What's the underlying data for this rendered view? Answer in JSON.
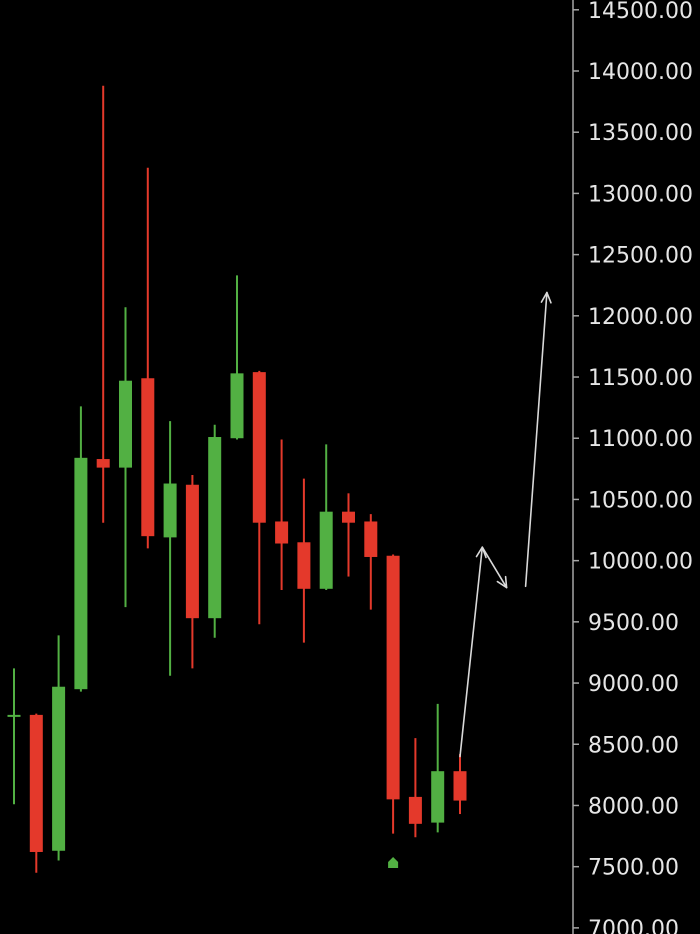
{
  "colors": {
    "background": "#000000",
    "up": "#52b043",
    "down": "#e4392b",
    "axis": "#a6a6a6",
    "tick_text": "#e6e6e6",
    "projection": "#d9d9d9"
  },
  "chart_data": {
    "type": "candlestick",
    "title": "",
    "xlabel": "",
    "ylabel": "",
    "ylim": [
      6950,
      14580
    ],
    "y_axis_position": "right",
    "grid": false,
    "y_ticks": [
      "14500.00",
      "14000.00",
      "13500.00",
      "13000.00",
      "12500.00",
      "12000.00",
      "11500.00",
      "11000.00",
      "10500.00",
      "10000.00",
      "9500.00",
      "9000.00",
      "8500.00",
      "8000.00",
      "7500.00",
      "7000.00"
    ],
    "candles": [
      {
        "open": 8740,
        "high": 9120,
        "low": 8010,
        "close": 8740
      },
      {
        "open": 8740,
        "high": 8750,
        "low": 7450,
        "close": 7620
      },
      {
        "open": 7630,
        "high": 9390,
        "low": 7550,
        "close": 8970
      },
      {
        "open": 8950,
        "high": 11260,
        "low": 8930,
        "close": 10840
      },
      {
        "open": 10830,
        "high": 13880,
        "low": 10310,
        "close": 10760
      },
      {
        "open": 10760,
        "high": 12070,
        "low": 9620,
        "close": 11470
      },
      {
        "open": 11490,
        "high": 13210,
        "low": 10100,
        "close": 10200
      },
      {
        "open": 10190,
        "high": 11140,
        "low": 9060,
        "close": 10630
      },
      {
        "open": 10620,
        "high": 10700,
        "low": 9120,
        "close": 9530
      },
      {
        "open": 9530,
        "high": 11110,
        "low": 9370,
        "close": 11010
      },
      {
        "open": 11000,
        "high": 12330,
        "low": 10990,
        "close": 11530
      },
      {
        "open": 11540,
        "high": 11550,
        "low": 9480,
        "close": 10310
      },
      {
        "open": 10320,
        "high": 10990,
        "low": 9760,
        "close": 10140
      },
      {
        "open": 10150,
        "high": 10670,
        "low": 9330,
        "close": 9770
      },
      {
        "open": 9770,
        "high": 10950,
        "low": 9760,
        "close": 10400
      },
      {
        "open": 10400,
        "high": 10550,
        "low": 9870,
        "close": 10310
      },
      {
        "open": 10320,
        "high": 10380,
        "low": 9600,
        "close": 10030
      },
      {
        "open": 10040,
        "high": 10050,
        "low": 7770,
        "close": 8050
      },
      {
        "open": 8070,
        "high": 8550,
        "low": 7740,
        "close": 7850
      },
      {
        "open": 7860,
        "high": 8830,
        "low": 7780,
        "close": 8280
      },
      {
        "open": 8280,
        "high": 8420,
        "low": 7930,
        "close": 8040
      }
    ],
    "signal_marker": {
      "candle_index": 17,
      "price": 7530,
      "direction": "up"
    },
    "projection_path": [
      {
        "bar": 20,
        "price": 8400
      },
      {
        "bar": 21,
        "price": 10110
      },
      {
        "bar": 22,
        "price": 9780
      },
      {
        "bar": 22,
        "price": 9790
      },
      {
        "bar": 23,
        "price": 12190
      }
    ]
  }
}
